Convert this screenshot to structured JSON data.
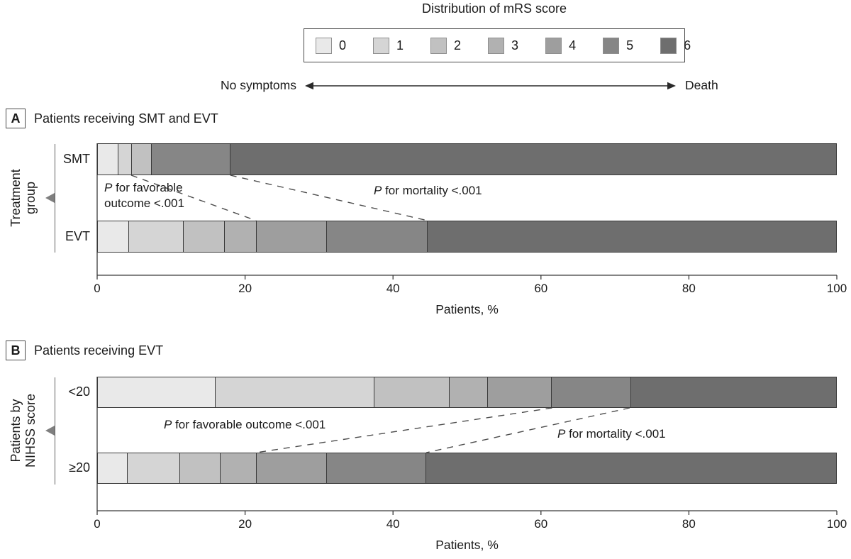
{
  "figure": {
    "scale_note": {
      "left": "No symptoms",
      "right": "Death"
    }
  },
  "chart_data": {
    "type": "bar",
    "subtype": "horizontal_stacked_100pct",
    "title": "Distribution of mRS score",
    "legend": {
      "position": "top",
      "entries": [
        "0",
        "1",
        "2",
        "3",
        "4",
        "5",
        "6"
      ]
    },
    "colors": [
      "#e9e9e9",
      "#d5d5d5",
      "#c1c1c1",
      "#b1b1b1",
      "#9e9e9e",
      "#868686",
      "#6e6e6e"
    ],
    "xlabel": "Patients, %",
    "xlim": [
      0,
      100
    ],
    "xticks": [
      0,
      20,
      40,
      60,
      80,
      100
    ],
    "grid": false,
    "panels": [
      {
        "letter": "A",
        "title": "Patients receiving SMT and EVT",
        "group_axis_label": [
          "Treatment",
          "group"
        ],
        "rows": [
          {
            "name": "SMT",
            "values": [
              2.8,
              1.8,
              2.7,
              0,
              0,
              10.7,
              82.0
            ]
          },
          {
            "name": "EVT",
            "values": [
              4.2,
              7.4,
              5.6,
              4.3,
              9.5,
              13.7,
              55.3
            ]
          }
        ],
        "annotations": [
          {
            "id": "favorable-outcome",
            "lines": [
              "P for favorable",
              "outcome <.001"
            ],
            "from_pct": 4.6,
            "to_pct": 21.5,
            "label_pos": [
              147,
              254
            ]
          },
          {
            "id": "mortality",
            "lines": [
              "P for mortality <.001"
            ],
            "from_pct": 18.0,
            "to_pct": 44.7,
            "label_pos": [
              527,
              258
            ]
          }
        ]
      },
      {
        "letter": "B",
        "title": "Patients receiving EVT",
        "group_axis_label": [
          "Patients by",
          "NIHSS score"
        ],
        "rows": [
          {
            "name": "<20",
            "values": [
              15.9,
              21.6,
              10.1,
              5.2,
              8.7,
              10.7,
              27.8
            ]
          },
          {
            "name": "≥20",
            "values": [
              4.0,
              7.1,
              5.5,
              4.9,
              9.5,
              13.5,
              55.5
            ]
          }
        ],
        "annotations": [
          {
            "id": "favorable-outcome",
            "lines": [
              "P for favorable outcome <.001"
            ],
            "from_pct": 61.5,
            "to_pct": 21.5,
            "label_pos": [
              231,
              588
            ]
          },
          {
            "id": "mortality",
            "lines": [
              "P for mortality <.001"
            ],
            "from_pct": 72.0,
            "to_pct": 44.5,
            "label_pos": [
              786,
              601
            ]
          }
        ]
      }
    ]
  }
}
